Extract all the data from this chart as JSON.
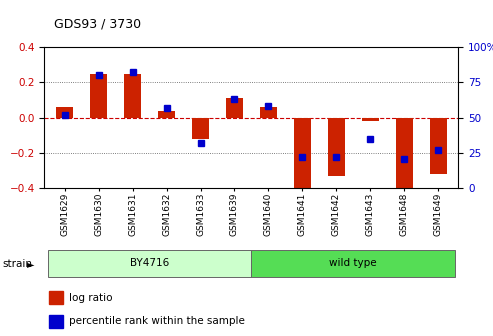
{
  "title": "GDS93 / 3730",
  "categories": [
    "GSM1629",
    "GSM1630",
    "GSM1631",
    "GSM1632",
    "GSM1633",
    "GSM1639",
    "GSM1640",
    "GSM1641",
    "GSM1642",
    "GSM1643",
    "GSM1648",
    "GSM1649"
  ],
  "log_ratio": [
    0.06,
    0.25,
    0.25,
    0.04,
    -0.12,
    0.11,
    0.06,
    -0.43,
    -0.33,
    -0.02,
    -0.43,
    -0.32
  ],
  "percentile_rank": [
    52,
    80,
    82,
    57,
    32,
    63,
    58,
    22,
    22,
    35,
    21,
    27
  ],
  "bar_color": "#cc2200",
  "pct_color": "#0000cc",
  "ylim": [
    -0.4,
    0.4
  ],
  "yticks_left": [
    -0.4,
    -0.2,
    0.0,
    0.2,
    0.4
  ],
  "yticks_right": [
    0,
    25,
    50,
    75,
    100
  ],
  "zero_line_color": "#cc0000",
  "grid_color": "#555555",
  "strain_groups": [
    {
      "label": "BY4716",
      "start": 0,
      "end": 5,
      "color": "#ccffcc"
    },
    {
      "label": "wild type",
      "start": 6,
      "end": 11,
      "color": "#55dd55"
    }
  ],
  "strain_label": "strain",
  "legend_log_ratio": "log ratio",
  "legend_percentile": "percentile rank within the sample",
  "bar_width": 0.5
}
